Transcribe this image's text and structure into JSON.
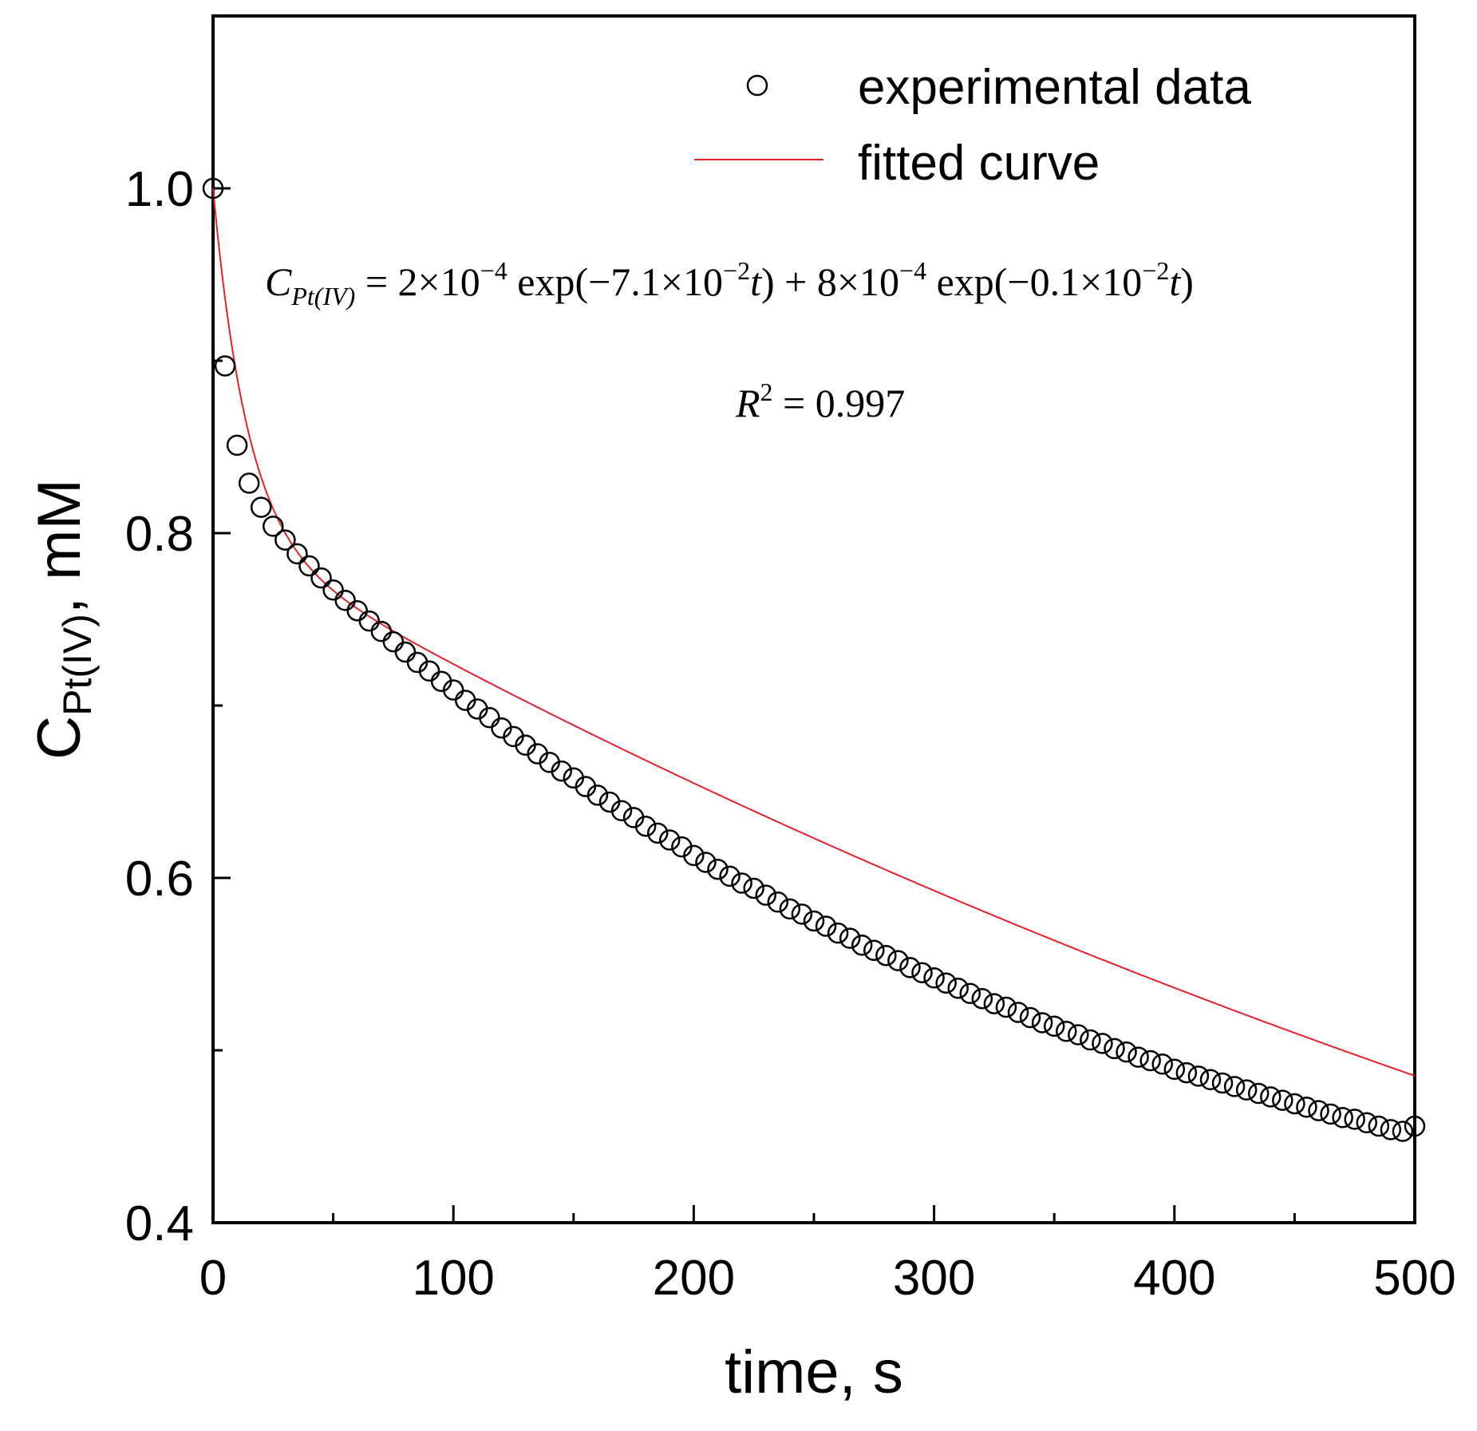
{
  "chart_data": {
    "type": "scatter",
    "title": "",
    "xlabel": "time, s",
    "ylabel": {
      "base": "C",
      "sub": "Pt(IV)",
      "suffix": ", mM"
    },
    "xlim": [
      0,
      500
    ],
    "ylim": [
      0.4,
      1.1
    ],
    "xticks": [
      0,
      100,
      200,
      300,
      400,
      500
    ],
    "xtick_labels": [
      "0",
      "100",
      "200",
      "300",
      "400",
      "500"
    ],
    "xminor": [
      50,
      150,
      250,
      350,
      450
    ],
    "yticks": [
      0.4,
      0.6,
      0.8,
      1.0
    ],
    "ytick_labels": [
      "0.4",
      "0.6",
      "0.8",
      "1.0"
    ],
    "yminor": [
      0.5,
      0.7,
      0.9
    ],
    "grid": false,
    "legend_position": "top-right",
    "series": [
      {
        "name": "experimental data",
        "marker": "open-circle",
        "color": "#000000",
        "x": [
          0,
          5,
          10,
          15,
          20,
          25,
          30,
          35,
          40,
          45,
          50,
          55,
          60,
          65,
          70,
          75,
          80,
          85,
          90,
          95,
          100,
          105,
          110,
          115,
          120,
          125,
          130,
          135,
          140,
          145,
          150,
          155,
          160,
          165,
          170,
          175,
          180,
          185,
          190,
          195,
          200,
          205,
          210,
          215,
          220,
          225,
          230,
          235,
          240,
          245,
          250,
          255,
          260,
          265,
          270,
          275,
          280,
          285,
          290,
          295,
          300,
          305,
          310,
          315,
          320,
          325,
          330,
          335,
          340,
          345,
          350,
          355,
          360,
          365,
          370,
          375,
          380,
          385,
          390,
          395,
          400,
          405,
          410,
          415,
          420,
          425,
          430,
          435,
          440,
          445,
          450,
          455,
          460,
          465,
          470,
          475,
          480,
          485,
          490,
          495,
          500
        ],
        "y": [
          1.0,
          0.897,
          0.851,
          0.829,
          0.815,
          0.804,
          0.796,
          0.788,
          0.781,
          0.774,
          0.767,
          0.761,
          0.755,
          0.749,
          0.743,
          0.737,
          0.731,
          0.725,
          0.72,
          0.714,
          0.709,
          0.703,
          0.698,
          0.693,
          0.687,
          0.682,
          0.677,
          0.672,
          0.667,
          0.662,
          0.658,
          0.653,
          0.648,
          0.644,
          0.639,
          0.635,
          0.63,
          0.626,
          0.622,
          0.618,
          0.613,
          0.609,
          0.605,
          0.601,
          0.597,
          0.594,
          0.59,
          0.586,
          0.582,
          0.579,
          0.575,
          0.572,
          0.568,
          0.565,
          0.561,
          0.558,
          0.555,
          0.552,
          0.548,
          0.545,
          0.542,
          0.539,
          0.536,
          0.533,
          0.53,
          0.527,
          0.525,
          0.522,
          0.519,
          0.516,
          0.514,
          0.511,
          0.509,
          0.506,
          0.504,
          0.501,
          0.499,
          0.496,
          0.494,
          0.492,
          0.489,
          0.487,
          0.485,
          0.483,
          0.481,
          0.479,
          0.477,
          0.475,
          0.473,
          0.471,
          0.469,
          0.467,
          0.465,
          0.463,
          0.461,
          0.46,
          0.458,
          0.456,
          0.454,
          0.453,
          0.456
        ]
      },
      {
        "name": "fitted curve",
        "type": "line",
        "color": "#e8202a",
        "model": {
          "a1": 0.2,
          "k1": 0.071,
          "a2": 0.8,
          "k2": 0.001
        }
      }
    ],
    "annotations": {
      "equation": {
        "lhs_base": "C",
        "lhs_sub": "Pt(IV)",
        "eq": " = 2×10",
        "exp1": "−4",
        "p2": " exp(−7.1×10",
        "exp2": "−2",
        "t1": "t",
        "p3": ") + 8×10",
        "exp3": "−4",
        "p4": " exp(−0.1×10",
        "exp4": "−2",
        "t2": "t",
        "p5": ")"
      },
      "r2": {
        "base": "R",
        "sup": "2",
        "rest": " = 0.997"
      }
    }
  }
}
